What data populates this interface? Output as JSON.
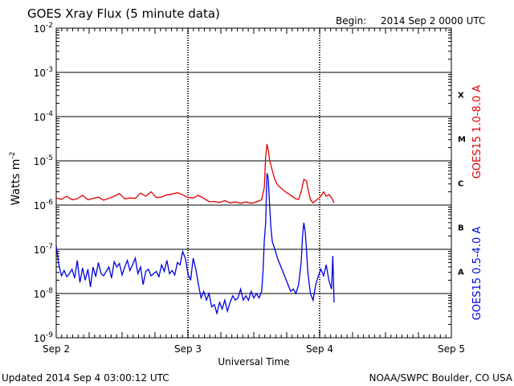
{
  "header": {
    "title": "GOES Xray Flux (5 minute data)",
    "begin_label": "Begin:",
    "begin_value": "2014 Sep 2 0000 UTC"
  },
  "footer": {
    "updated": "Updated 2014 Sep  4 03:00:12 UTC",
    "credit": "NOAA/SWPC Boulder, CO USA"
  },
  "chart_data": {
    "type": "line",
    "title": "GOES Xray Flux (5 minute data)",
    "xlabel": "Universal Time",
    "ylabel": "Watts m",
    "ylabel_sup": "-2",
    "x_unit": "days since 2014 Sep 2 0000 UTC",
    "xlim": [
      0,
      3
    ],
    "x_ticks": [
      {
        "x": 0,
        "label": "Sep 2"
      },
      {
        "x": 1,
        "label": "Sep 3"
      },
      {
        "x": 2,
        "label": "Sep 4"
      },
      {
        "x": 3,
        "label": "Sep 5"
      }
    ],
    "y_scale": "log",
    "ylim_exp": [
      -9,
      -2
    ],
    "y_ticks": [
      {
        "exp": -9,
        "base": "10",
        "sup": "-9"
      },
      {
        "exp": -8,
        "base": "10",
        "sup": "-8"
      },
      {
        "exp": -7,
        "base": "10",
        "sup": "-7"
      },
      {
        "exp": -6,
        "base": "10",
        "sup": "-6"
      },
      {
        "exp": -5,
        "base": "10",
        "sup": "-5"
      },
      {
        "exp": -4,
        "base": "10",
        "sup": "-4"
      },
      {
        "exp": -3,
        "base": "10",
        "sup": "-3"
      },
      {
        "exp": -2,
        "base": "10",
        "sup": "-2"
      }
    ],
    "flare_classes": [
      {
        "label": "A",
        "exp_mid": -7.5
      },
      {
        "label": "B",
        "exp_mid": -6.5
      },
      {
        "label": "C",
        "exp_mid": -5.5
      },
      {
        "label": "M",
        "exp_mid": -4.5
      },
      {
        "label": "X",
        "exp_mid": -3.5
      }
    ],
    "series": [
      {
        "name": "GOES15 1.0-8.0 A",
        "color": "#e00000",
        "points": [
          [
            0.0,
            -5.84
          ],
          [
            0.04,
            -5.87
          ],
          [
            0.08,
            -5.8
          ],
          [
            0.12,
            -5.88
          ],
          [
            0.16,
            -5.86
          ],
          [
            0.2,
            -5.78
          ],
          [
            0.24,
            -5.88
          ],
          [
            0.28,
            -5.85
          ],
          [
            0.32,
            -5.82
          ],
          [
            0.36,
            -5.89
          ],
          [
            0.4,
            -5.85
          ],
          [
            0.44,
            -5.8
          ],
          [
            0.48,
            -5.74
          ],
          [
            0.52,
            -5.86
          ],
          [
            0.56,
            -5.84
          ],
          [
            0.6,
            -5.85
          ],
          [
            0.64,
            -5.73
          ],
          [
            0.68,
            -5.8
          ],
          [
            0.72,
            -5.7
          ],
          [
            0.76,
            -5.83
          ],
          [
            0.8,
            -5.82
          ],
          [
            0.84,
            -5.77
          ],
          [
            0.88,
            -5.75
          ],
          [
            0.92,
            -5.72
          ],
          [
            0.96,
            -5.77
          ],
          [
            1.0,
            -5.83
          ],
          [
            1.04,
            -5.84
          ],
          [
            1.08,
            -5.78
          ],
          [
            1.12,
            -5.85
          ],
          [
            1.16,
            -5.92
          ],
          [
            1.2,
            -5.92
          ],
          [
            1.24,
            -5.94
          ],
          [
            1.28,
            -5.9
          ],
          [
            1.32,
            -5.95
          ],
          [
            1.36,
            -5.93
          ],
          [
            1.4,
            -5.96
          ],
          [
            1.44,
            -5.93
          ],
          [
            1.48,
            -5.96
          ],
          [
            1.52,
            -5.93
          ],
          [
            1.56,
            -5.88
          ],
          [
            1.58,
            -5.6
          ],
          [
            1.59,
            -4.9
          ],
          [
            1.6,
            -4.62
          ],
          [
            1.61,
            -4.75
          ],
          [
            1.62,
            -4.98
          ],
          [
            1.64,
            -5.22
          ],
          [
            1.66,
            -5.42
          ],
          [
            1.68,
            -5.54
          ],
          [
            1.7,
            -5.6
          ],
          [
            1.72,
            -5.65
          ],
          [
            1.74,
            -5.7
          ],
          [
            1.76,
            -5.74
          ],
          [
            1.78,
            -5.78
          ],
          [
            1.8,
            -5.82
          ],
          [
            1.82,
            -5.86
          ],
          [
            1.84,
            -5.87
          ],
          [
            1.86,
            -5.7
          ],
          [
            1.88,
            -5.42
          ],
          [
            1.9,
            -5.45
          ],
          [
            1.91,
            -5.62
          ],
          [
            1.93,
            -5.88
          ],
          [
            1.95,
            -5.95
          ],
          [
            1.97,
            -5.9
          ],
          [
            1.99,
            -5.85
          ],
          [
            2.01,
            -5.8
          ],
          [
            2.03,
            -5.7
          ],
          [
            2.05,
            -5.8
          ],
          [
            2.07,
            -5.76
          ],
          [
            2.09,
            -5.83
          ],
          [
            2.11,
            -5.95
          ]
        ]
      },
      {
        "name": "GOES15 0.5-4.0 A",
        "color": "#0000e0",
        "points": [
          [
            0.0,
            -6.92
          ],
          [
            0.02,
            -7.35
          ],
          [
            0.04,
            -7.6
          ],
          [
            0.06,
            -7.48
          ],
          [
            0.08,
            -7.62
          ],
          [
            0.1,
            -7.55
          ],
          [
            0.12,
            -7.45
          ],
          [
            0.14,
            -7.65
          ],
          [
            0.16,
            -7.25
          ],
          [
            0.18,
            -7.75
          ],
          [
            0.2,
            -7.42
          ],
          [
            0.22,
            -7.7
          ],
          [
            0.24,
            -7.45
          ],
          [
            0.26,
            -7.85
          ],
          [
            0.28,
            -7.4
          ],
          [
            0.3,
            -7.62
          ],
          [
            0.32,
            -7.3
          ],
          [
            0.34,
            -7.55
          ],
          [
            0.36,
            -7.6
          ],
          [
            0.38,
            -7.5
          ],
          [
            0.4,
            -7.4
          ],
          [
            0.42,
            -7.65
          ],
          [
            0.44,
            -7.28
          ],
          [
            0.46,
            -7.4
          ],
          [
            0.48,
            -7.32
          ],
          [
            0.5,
            -7.58
          ],
          [
            0.52,
            -7.4
          ],
          [
            0.54,
            -7.25
          ],
          [
            0.56,
            -7.48
          ],
          [
            0.58,
            -7.35
          ],
          [
            0.6,
            -7.2
          ],
          [
            0.62,
            -7.55
          ],
          [
            0.64,
            -7.4
          ],
          [
            0.66,
            -7.8
          ],
          [
            0.68,
            -7.5
          ],
          [
            0.7,
            -7.45
          ],
          [
            0.72,
            -7.6
          ],
          [
            0.74,
            -7.55
          ],
          [
            0.76,
            -7.5
          ],
          [
            0.78,
            -7.62
          ],
          [
            0.8,
            -7.35
          ],
          [
            0.82,
            -7.5
          ],
          [
            0.84,
            -7.25
          ],
          [
            0.86,
            -7.55
          ],
          [
            0.88,
            -7.48
          ],
          [
            0.9,
            -7.58
          ],
          [
            0.92,
            -7.3
          ],
          [
            0.94,
            -7.35
          ],
          [
            0.96,
            -7.05
          ],
          [
            0.98,
            -7.2
          ],
          [
            1.0,
            -7.55
          ],
          [
            1.02,
            -7.7
          ],
          [
            1.04,
            -7.2
          ],
          [
            1.06,
            -7.45
          ],
          [
            1.08,
            -7.8
          ],
          [
            1.1,
            -8.1
          ],
          [
            1.12,
            -7.95
          ],
          [
            1.14,
            -8.15
          ],
          [
            1.16,
            -8.0
          ],
          [
            1.18,
            -8.3
          ],
          [
            1.2,
            -8.25
          ],
          [
            1.22,
            -8.45
          ],
          [
            1.24,
            -8.2
          ],
          [
            1.26,
            -8.35
          ],
          [
            1.28,
            -8.15
          ],
          [
            1.3,
            -8.4
          ],
          [
            1.32,
            -8.2
          ],
          [
            1.34,
            -8.05
          ],
          [
            1.36,
            -8.15
          ],
          [
            1.38,
            -8.1
          ],
          [
            1.4,
            -7.9
          ],
          [
            1.42,
            -8.15
          ],
          [
            1.44,
            -8.05
          ],
          [
            1.46,
            -8.15
          ],
          [
            1.48,
            -7.95
          ],
          [
            1.5,
            -8.1
          ],
          [
            1.52,
            -8.0
          ],
          [
            1.54,
            -8.1
          ],
          [
            1.56,
            -7.95
          ],
          [
            1.57,
            -7.5
          ],
          [
            1.58,
            -6.8
          ],
          [
            1.59,
            -6.4
          ],
          [
            1.6,
            -5.28
          ],
          [
            1.61,
            -5.4
          ],
          [
            1.62,
            -6.0
          ],
          [
            1.63,
            -6.5
          ],
          [
            1.64,
            -6.82
          ],
          [
            1.66,
            -7.0
          ],
          [
            1.68,
            -7.2
          ],
          [
            1.7,
            -7.35
          ],
          [
            1.72,
            -7.5
          ],
          [
            1.74,
            -7.65
          ],
          [
            1.76,
            -7.8
          ],
          [
            1.78,
            -7.95
          ],
          [
            1.8,
            -7.9
          ],
          [
            1.82,
            -8.0
          ],
          [
            1.84,
            -7.8
          ],
          [
            1.86,
            -7.3
          ],
          [
            1.87,
            -6.7
          ],
          [
            1.88,
            -6.4
          ],
          [
            1.89,
            -6.6
          ],
          [
            1.9,
            -7.0
          ],
          [
            1.91,
            -7.5
          ],
          [
            1.93,
            -8.0
          ],
          [
            1.95,
            -8.15
          ],
          [
            1.97,
            -7.8
          ],
          [
            1.99,
            -7.6
          ],
          [
            2.01,
            -7.45
          ],
          [
            2.03,
            -7.6
          ],
          [
            2.05,
            -7.35
          ],
          [
            2.07,
            -7.7
          ],
          [
            2.09,
            -7.9
          ],
          [
            2.1,
            -7.15
          ],
          [
            2.11,
            -8.2
          ]
        ]
      }
    ]
  }
}
